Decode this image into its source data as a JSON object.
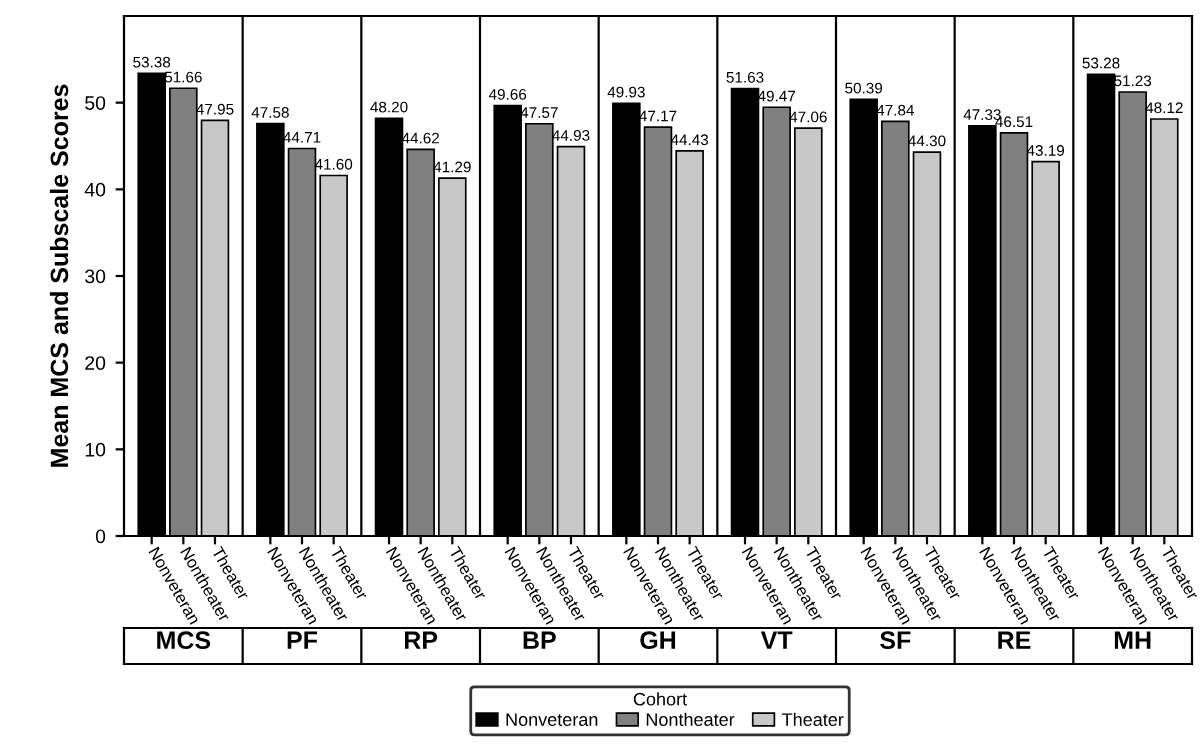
{
  "chart_data": {
    "type": "bar",
    "ylabel": "Mean MCS and Subscale Scores",
    "categories": [
      "MCS",
      "PF",
      "RP",
      "BP",
      "GH",
      "VT",
      "SF",
      "RE",
      "MH"
    ],
    "series": [
      {
        "name": "Nonveteran",
        "color": "#000000",
        "values": [
          53.38,
          47.58,
          48.2,
          49.66,
          49.93,
          51.63,
          50.39,
          47.33,
          53.28
        ]
      },
      {
        "name": "Nontheater",
        "color": "#808080",
        "values": [
          51.66,
          44.71,
          44.62,
          47.57,
          47.17,
          49.47,
          47.84,
          46.51,
          51.23
        ]
      },
      {
        "name": "Theater",
        "color": "#c8c8c8",
        "values": [
          47.95,
          41.6,
          41.29,
          44.93,
          44.43,
          47.06,
          44.3,
          43.19,
          48.12
        ]
      }
    ],
    "value_labels": [
      [
        "53.38",
        "47.58",
        "48.20",
        "49.66",
        "49.93",
        "51.63",
        "50.39",
        "47.33",
        "53.28"
      ],
      [
        "51.66",
        "44.71",
        "44.62",
        "47.57",
        "47.17",
        "49.47",
        "47.84",
        "46.51",
        "51.23"
      ],
      [
        "47.95",
        "41.60",
        "41.29",
        "44.93",
        "44.43",
        "47.06",
        "44.30",
        "43.19",
        "48.12"
      ]
    ],
    "ylim": [
      0,
      60
    ],
    "yticks": [
      0,
      10,
      20,
      30,
      40,
      50
    ],
    "grid": false,
    "legend": "bottom",
    "legend_title": "Cohort"
  }
}
